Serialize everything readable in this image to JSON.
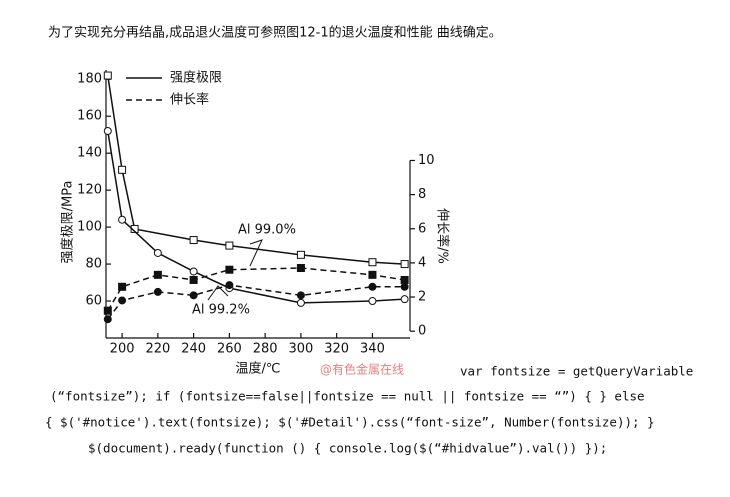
{
  "header": {
    "text": "为了实现充分再结晶,成品退火温度可参照图12-1的退火温度和性能 曲线确定。"
  },
  "chart_data": {
    "type": "line",
    "x_label": "温度/℃",
    "y_label": "强度极限/MPa",
    "y2_label": "伸长率/%",
    "xlim": [
      191,
      361
    ],
    "xticks": [
      200,
      220,
      240,
      260,
      280,
      300,
      320,
      340
    ],
    "ylim": [
      40,
      185
    ],
    "yticks": [
      60,
      80,
      100,
      120,
      140,
      160,
      180
    ],
    "y2lim": [
      -0.4,
      15.3
    ],
    "y2ticks": [
      0,
      2,
      4,
      6,
      8,
      10
    ],
    "legend": [
      {
        "label": "强度极限",
        "style": "solid"
      },
      {
        "label": "伸长率",
        "style": "dashed"
      }
    ],
    "series": [
      {
        "name": "Al 99.0%",
        "quantity": "强度极限",
        "marker": "square",
        "filled": false,
        "color": "#111",
        "x": [
          192,
          200,
          207,
          240,
          260,
          300,
          340,
          358
        ],
        "values": [
          182,
          131,
          99,
          93,
          90,
          85,
          81,
          80
        ]
      },
      {
        "name": "Al 99.2%",
        "quantity": "强度极限",
        "marker": "circle",
        "filled": false,
        "color": "#111",
        "x": [
          192,
          200,
          220,
          240,
          260,
          300,
          340,
          358
        ],
        "values": [
          152,
          104,
          86,
          76,
          67,
          59,
          60,
          61
        ]
      },
      {
        "name": "Al 99.0%",
        "quantity": "伸长率",
        "marker": "square",
        "filled": true,
        "color": "#111",
        "axis": "y2",
        "x": [
          192,
          200,
          220,
          240,
          260,
          300,
          340,
          358
        ],
        "values": [
          1.2,
          2.6,
          3.3,
          3.0,
          3.6,
          3.7,
          3.3,
          3.0
        ]
      },
      {
        "name": "Al 99.2%",
        "quantity": "伸长率",
        "marker": "circle",
        "filled": true,
        "color": "#111",
        "axis": "y2",
        "x": [
          192,
          200,
          220,
          240,
          260,
          300,
          340,
          358
        ],
        "values": [
          0.7,
          1.8,
          2.3,
          2.1,
          2.7,
          2.1,
          2.6,
          2.6
        ]
      }
    ]
  },
  "watermark": "@有色金属在线",
  "code": [
    "var fontsize = getQueryVariable",
    "(“fontsize”); if (fontsize==false||fontsize == null || fontsize == “”) { } else",
    "{ $('#notice').text(fontsize); $('#Detail').css(“font-size”, Number(fontsize)); }",
    "$(document).ready(function () { console.log($(“#hidvalue”).val()) });"
  ]
}
